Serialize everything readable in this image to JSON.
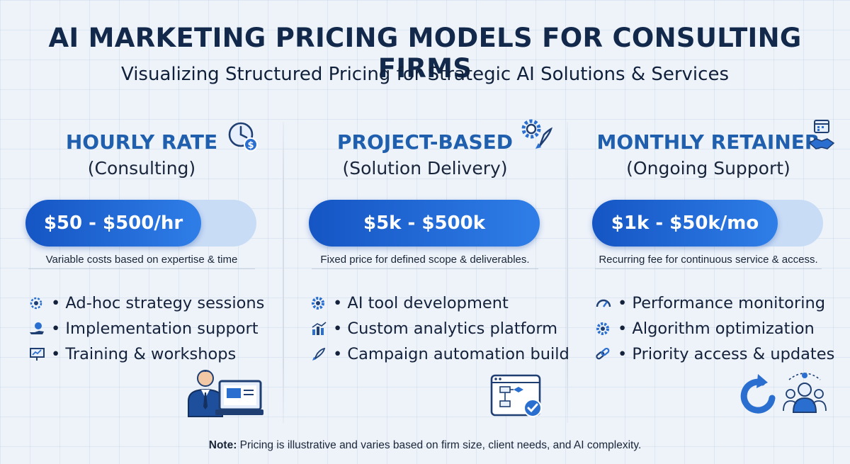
{
  "header": {
    "title": "AI MARKETING PRICING MODELS FOR CONSULTING FIRMS",
    "subtitle": "Visualizing Structured Pricing for Strategic AI Solutions & Services"
  },
  "columns": [
    {
      "title": "HOURLY RATE",
      "subtitle": "(Consulting)",
      "price": "$50 - $500/hr",
      "description": "Variable costs based on expertise & time",
      "head_icon": "clock-dollar-icon",
      "items": [
        {
          "icon": "gear-brain-icon",
          "label": "• Ad-hoc strategy sessions"
        },
        {
          "icon": "hand-coin-icon",
          "label": "• Implementation support"
        },
        {
          "icon": "presentation-board-icon",
          "label": "• Training & workshops"
        }
      ],
      "illustration": "consultant-laptop-icon"
    },
    {
      "title": "PROJECT-BASED",
      "subtitle": "(Solution Delivery)",
      "price": "$5k - $500k",
      "description": "Fixed price for defined scope & deliverables.",
      "head_icon": "gear-rocket-icon",
      "items": [
        {
          "icon": "gear-icon",
          "label": "• AI tool development"
        },
        {
          "icon": "bar-chart-icon",
          "label": "• Custom analytics platform"
        },
        {
          "icon": "rocket-icon",
          "label": "• Campaign automation build"
        }
      ],
      "illustration": "workflow-check-icon"
    },
    {
      "title": "MONTHLY RETAINER",
      "subtitle": "(Ongoing Support)",
      "price": "$1k - $50k/mo",
      "description": "Recurring fee for continuous service & access.",
      "head_icon": "calendar-handshake-icon",
      "items": [
        {
          "icon": "speedometer-icon",
          "label": "• Performance monitoring"
        },
        {
          "icon": "gear-icon",
          "label": "• Algorithm optimization"
        },
        {
          "icon": "link-icon",
          "label": "• Priority access & updates"
        }
      ],
      "illustration": "refresh-team-icon"
    }
  ],
  "note": {
    "label": "Note:",
    "text": " Pricing is illustrative and varies based on firm size, client needs, and AI complexity."
  },
  "colors": {
    "accent_blue": "#1f5fae",
    "bar_fill": "#1555c4",
    "bar_track": "#c9dcf6",
    "title_navy": "#13294b"
  }
}
